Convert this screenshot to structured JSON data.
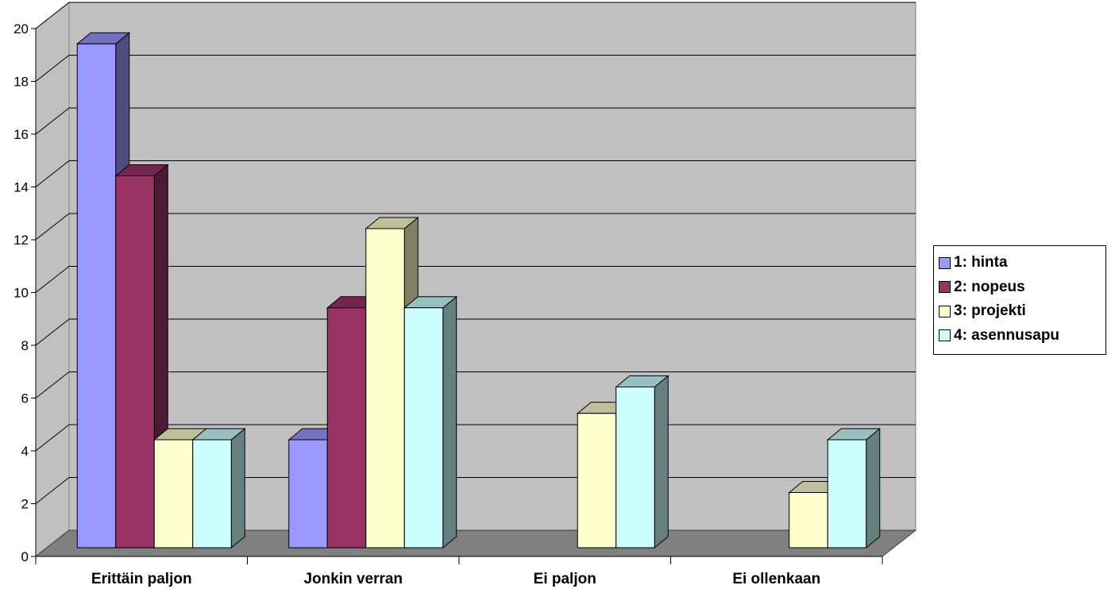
{
  "chart_data": {
    "type": "bar",
    "categories": [
      "Erittäin paljon",
      "Jonkin verran",
      "Ei paljon",
      "Ei ollenkaan"
    ],
    "series": [
      {
        "name": "1: hinta",
        "values": [
          19,
          4,
          0,
          0
        ],
        "color": "#9999ff",
        "side": "#4d4d80",
        "top": "#7373bf"
      },
      {
        "name": "2: nopeus",
        "values": [
          14,
          9,
          0,
          0
        ],
        "color": "#993366",
        "side": "#4d1a33",
        "top": "#73264d"
      },
      {
        "name": "3: projekti",
        "values": [
          4,
          12,
          5,
          2
        ],
        "color": "#ffffcc",
        "side": "#808066",
        "top": "#bfbf99"
      },
      {
        "name": "4: asennusapu",
        "values": [
          4,
          9,
          6,
          4
        ],
        "color": "#ccffff",
        "side": "#668080",
        "top": "#99bfbf"
      }
    ],
    "ylim": [
      0,
      20
    ],
    "yticks": [
      "0",
      "2",
      "4",
      "6",
      "8",
      "10",
      "12",
      "14",
      "16",
      "18",
      "20"
    ],
    "grid": true,
    "legend_position": "right",
    "wall_color": "#c0c0c0",
    "floor_color": "#808080"
  }
}
